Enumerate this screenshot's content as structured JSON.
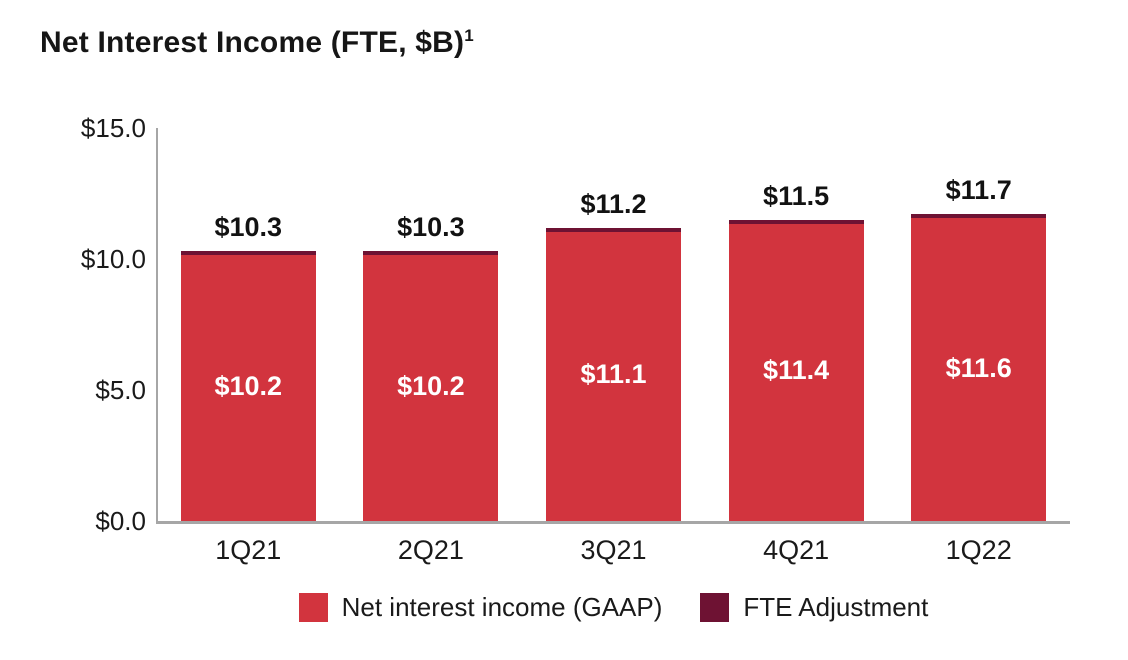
{
  "title": "Net Interest Income (FTE, $B)",
  "title_superscript": "1",
  "colors": {
    "gaap_red": "#d2343e",
    "fte_maroon": "#6e1233",
    "axis_gray": "#a6a6a6",
    "title_text": "#161616",
    "tick_text": "#1a1a1a",
    "inside_label_text": "#ffffff"
  },
  "chart_data": {
    "type": "bar",
    "stacked": true,
    "title": "Net Interest Income (FTE, $B)",
    "xlabel": "",
    "ylabel": "",
    "categories": [
      "1Q21",
      "2Q21",
      "3Q21",
      "4Q21",
      "1Q22"
    ],
    "series": [
      {
        "name": "Net interest income (GAAP)",
        "color": "#d2343e",
        "values": [
          10.2,
          10.2,
          11.1,
          11.4,
          11.6
        ]
      },
      {
        "name": "FTE Adjustment",
        "color": "#6e1233",
        "values": [
          0.1,
          0.1,
          0.1,
          0.1,
          0.1
        ]
      }
    ],
    "totals_fte": [
      10.3,
      10.3,
      11.2,
      11.5,
      11.7
    ],
    "bar_top_labels": [
      "$10.3",
      "$10.3",
      "$11.2",
      "$11.5",
      "$11.7"
    ],
    "bar_inside_labels": [
      "$10.2",
      "$10.2",
      "$11.1",
      "$11.4",
      "$11.6"
    ],
    "ytick_labels": [
      "$15.0",
      "$10.0",
      "$5.0",
      "$0.0"
    ],
    "ytick_values": [
      15.0,
      10.0,
      5.0,
      0.0
    ],
    "ylim": [
      0,
      15
    ],
    "grid": false,
    "legend_position": "bottom"
  },
  "legend": [
    {
      "label": "Net interest income (GAAP)",
      "color": "#d2343e",
      "swatch_name": "legend-swatch-gaap"
    },
    {
      "label": "FTE Adjustment",
      "color": "#6e1233",
      "swatch_name": "legend-swatch-fte"
    }
  ]
}
